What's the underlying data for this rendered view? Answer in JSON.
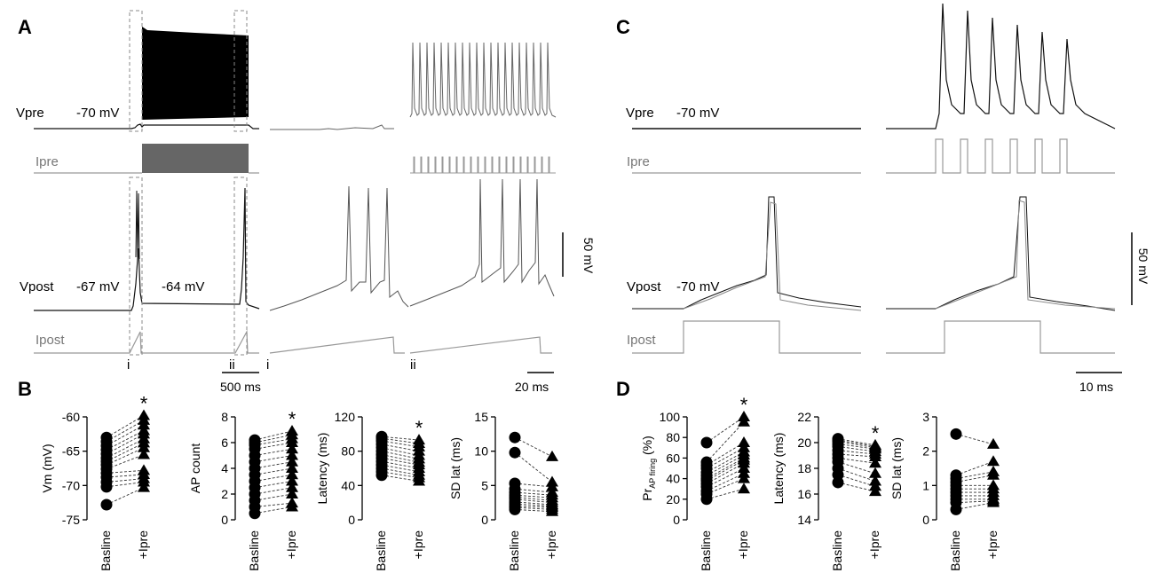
{
  "panels": {
    "a": {
      "letter": "A",
      "vpre_label": "Vpre",
      "vpre_value": "-70 mV",
      "ipre_label": "Ipre",
      "vpost_label": "Vpost",
      "vpost_value_before": "-67 mV",
      "vpost_value_during": "-64 mV",
      "ipost_label": "Ipost",
      "marker_i": "i",
      "marker_ii": "ii",
      "zoom_label_i": "i",
      "zoom_label_ii": "ii",
      "scale_time_main": "500 ms",
      "scale_time_zoom": "20 ms",
      "scale_voltage": "50 mV"
    },
    "c": {
      "letter": "C",
      "vpre_label": "Vpre",
      "vpre_value": "-70 mV",
      "ipre_label": "Ipre",
      "vpost_label": "Vpost",
      "vpost_value": "-70 mV",
      "ipost_label": "Ipost",
      "scale_time": "10 ms",
      "scale_voltage": "50 mV"
    },
    "b": {
      "letter": "B"
    },
    "d": {
      "letter": "D"
    }
  },
  "chart_data": [
    {
      "id": "b1",
      "panel": "B",
      "type": "scatter",
      "ylabel": "Vm (mV)",
      "categories": [
        "Basline",
        "+Ipre"
      ],
      "ylim": [
        -75,
        -60
      ],
      "yticks": [
        -60,
        -65,
        -70,
        -75
      ],
      "significance": "*",
      "series": [
        {
          "name": "Basline",
          "marker": "circle",
          "values": [
            -72.8,
            -70.2,
            -69.5,
            -68.8,
            -68.2,
            -67.6,
            -67,
            -66.5,
            -66,
            -65.4,
            -64.8,
            -64.2,
            -63.6,
            -63
          ]
        },
        {
          "name": "+Ipre",
          "marker": "triangle",
          "values": [
            -70.3,
            -69.5,
            -69,
            -68.4,
            -67.8,
            -65.5,
            -64.5,
            -63.8,
            -63.2,
            -62.5,
            -62,
            -61.2,
            -60.5,
            -59.8
          ]
        }
      ]
    },
    {
      "id": "b2",
      "panel": "B",
      "type": "scatter",
      "ylabel": "AP count",
      "categories": [
        "Basline",
        "+Ipre"
      ],
      "ylim": [
        0,
        8
      ],
      "yticks": [
        0,
        2,
        4,
        6,
        8
      ],
      "significance": "*",
      "series": [
        {
          "name": "Basline",
          "marker": "circle",
          "values": [
            0.5,
            1,
            1.5,
            2,
            2.5,
            3,
            3.5,
            4,
            4.5,
            5,
            5.5,
            5.8,
            6,
            6.2
          ]
        },
        {
          "name": "+Ipre",
          "marker": "triangle",
          "values": [
            1,
            1.3,
            2,
            2.5,
            3,
            3.5,
            4,
            4.5,
            5,
            5.5,
            6,
            6.3,
            6.6,
            6.9
          ]
        }
      ]
    },
    {
      "id": "b3",
      "panel": "B",
      "type": "scatter",
      "ylabel": "Latency (ms)",
      "categories": [
        "Basline",
        "+Ipre"
      ],
      "ylim": [
        0,
        120
      ],
      "yticks": [
        0,
        40,
        80,
        120
      ],
      "significance": "*",
      "series": [
        {
          "name": "Basline",
          "marker": "circle",
          "values": [
            52,
            56,
            60,
            64,
            68,
            72,
            76,
            80,
            84,
            88,
            92,
            95,
            97
          ]
        },
        {
          "name": "+Ipre",
          "marker": "triangle",
          "values": [
            45,
            49,
            52,
            56,
            60,
            64,
            67,
            71,
            75,
            80,
            85,
            89,
            93
          ]
        }
      ]
    },
    {
      "id": "b4",
      "panel": "B",
      "type": "scatter",
      "ylabel": "SD lat (ms)",
      "categories": [
        "Basline",
        "+Ipre"
      ],
      "ylim": [
        0,
        15
      ],
      "yticks": [
        0,
        5,
        10,
        15
      ],
      "significance": "",
      "series": [
        {
          "name": "Basline",
          "marker": "circle",
          "values": [
            1.5,
            1.8,
            2,
            2.3,
            2.6,
            3,
            3.3,
            3.6,
            4,
            4.5,
            5.3,
            9.8,
            12
          ]
        },
        {
          "name": "+Ipre",
          "marker": "triangle",
          "values": [
            1.2,
            1.5,
            1.8,
            2,
            2.2,
            2.5,
            2.8,
            3.2,
            3.6,
            4,
            4.8,
            5.5,
            9.2
          ]
        }
      ]
    },
    {
      "id": "d1",
      "panel": "D",
      "type": "scatter",
      "ylabel": "Pr",
      "ylabel_sub": "AP firing",
      "ylabel_suffix": " (%)",
      "categories": [
        "Basline",
        "+Ipre"
      ],
      "ylim": [
        0,
        100
      ],
      "yticks": [
        0,
        20,
        40,
        60,
        80,
        100
      ],
      "significance": "*",
      "series": [
        {
          "name": "Basline",
          "marker": "circle",
          "values": [
            20,
            25,
            28,
            32,
            35,
            38,
            40,
            43,
            46,
            50,
            53,
            56,
            75
          ]
        },
        {
          "name": "+Ipre",
          "marker": "triangle",
          "values": [
            30,
            40,
            45,
            50,
            55,
            58,
            60,
            63,
            66,
            70,
            75,
            95,
            100
          ]
        }
      ]
    },
    {
      "id": "d2",
      "panel": "D",
      "type": "scatter",
      "ylabel": "Latency (ms)",
      "categories": [
        "Basline",
        "+Ipre"
      ],
      "ylim": [
        14,
        22
      ],
      "yticks": [
        14,
        16,
        18,
        20,
        22
      ],
      "significance": "*",
      "series": [
        {
          "name": "Basline",
          "marker": "circle",
          "values": [
            16.9,
            17.5,
            18,
            18.5,
            18.8,
            19.1,
            19.4,
            19.7,
            19.9,
            20.1,
            20.2,
            20.3
          ]
        },
        {
          "name": "+Ipre",
          "marker": "triangle",
          "values": [
            16.2,
            16.6,
            17,
            17.6,
            18.4,
            18.9,
            19.1,
            19.3,
            19.5,
            19.6,
            19.7,
            19.8
          ]
        }
      ]
    },
    {
      "id": "d3",
      "panel": "D",
      "type": "scatter",
      "ylabel": "SD lat (ms)",
      "categories": [
        "Basline",
        "+Ipre"
      ],
      "ylim": [
        0,
        3
      ],
      "yticks": [
        0,
        1,
        2,
        3
      ],
      "significance": "",
      "series": [
        {
          "name": "Basline",
          "marker": "circle",
          "values": [
            0.3,
            0.5,
            0.6,
            0.7,
            0.8,
            0.9,
            1,
            1.1,
            1.2,
            1.3,
            2.5
          ]
        },
        {
          "name": "+Ipre",
          "marker": "triangle",
          "values": [
            0.5,
            0.55,
            0.6,
            0.7,
            0.8,
            0.9,
            1,
            1.3,
            1.4,
            1.7,
            2.2
          ]
        }
      ]
    }
  ]
}
